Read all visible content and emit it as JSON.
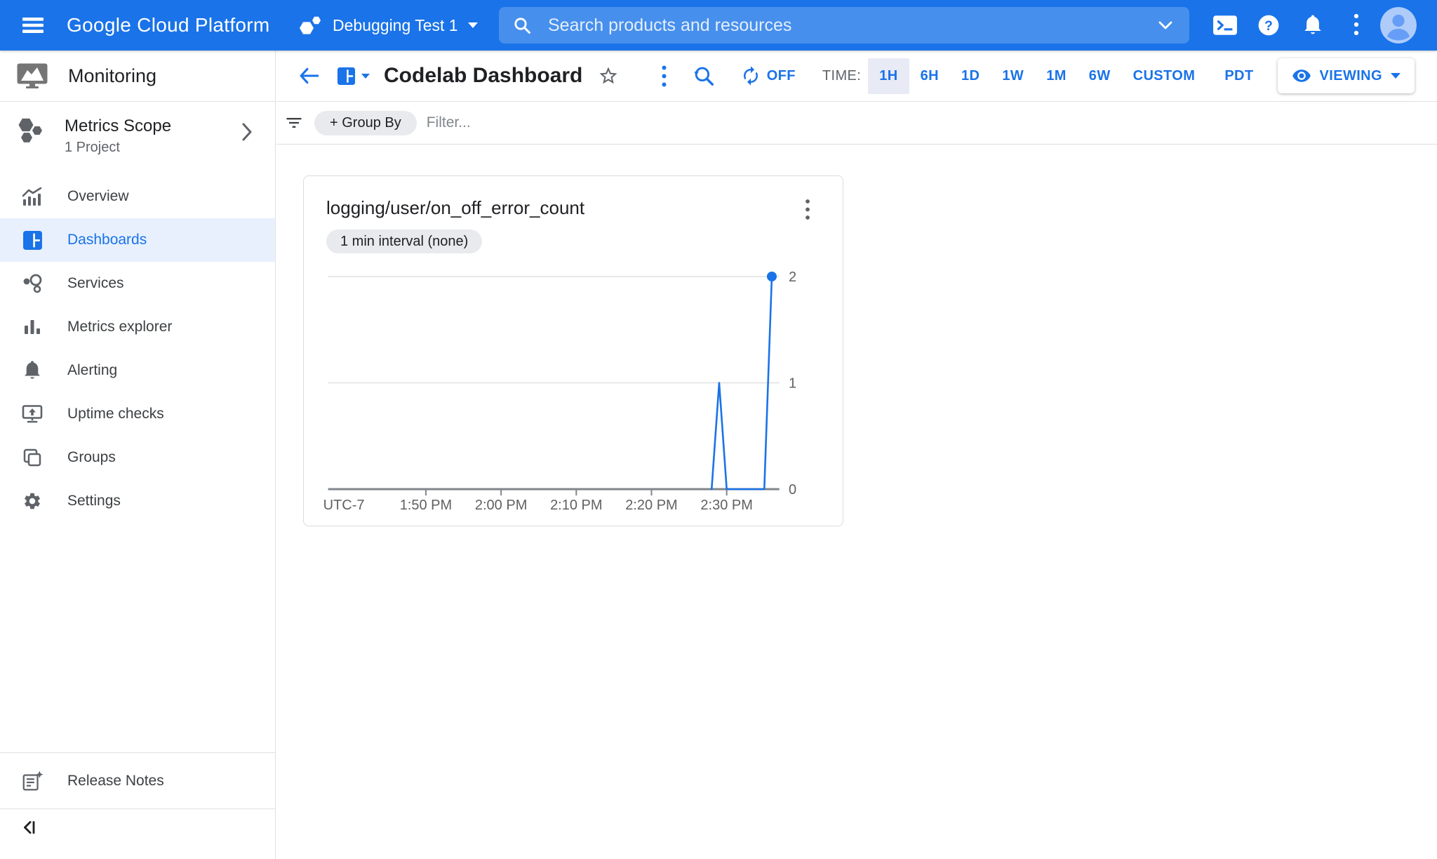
{
  "topbar": {
    "logo": "Google Cloud Platform",
    "project_selector": {
      "label": "Debugging Test 1",
      "icon": "hexagon-cluster-icon"
    },
    "search": {
      "placeholder": "Search products and resources"
    },
    "right_icons": [
      "chevron-down",
      "cloud-shell",
      "help",
      "notifications",
      "more-options",
      "account-avatar"
    ]
  },
  "sidebar": {
    "product": "Monitoring",
    "metrics_scope": {
      "title": "Metrics Scope",
      "subtitle": "1 Project"
    },
    "items": [
      {
        "label": "Overview",
        "selected": false
      },
      {
        "label": "Dashboards",
        "selected": true
      },
      {
        "label": "Services",
        "selected": false
      },
      {
        "label": "Metrics explorer",
        "selected": false
      },
      {
        "label": "Alerting",
        "selected": false
      },
      {
        "label": "Uptime checks",
        "selected": false
      },
      {
        "label": "Groups",
        "selected": false
      },
      {
        "label": "Settings",
        "selected": false
      }
    ],
    "release_notes_label": "Release Notes"
  },
  "toolbar": {
    "title": "Codelab Dashboard",
    "auto_refresh_label": "OFF",
    "time_label": "TIME:",
    "time_ranges": [
      {
        "label": "1H",
        "selected": true
      },
      {
        "label": "6H",
        "selected": false
      },
      {
        "label": "1D",
        "selected": false
      },
      {
        "label": "1W",
        "selected": false
      },
      {
        "label": "1M",
        "selected": false
      },
      {
        "label": "6W",
        "selected": false
      },
      {
        "label": "CUSTOM",
        "selected": false
      }
    ],
    "timezone": "PDT",
    "viewing_label": "VIEWING"
  },
  "filter_bar": {
    "group_by_label": "+ Group By",
    "filter_placeholder": "Filter..."
  },
  "chart_card": {
    "title": "logging/user/on_off_error_count",
    "interval_chip": "1 min interval (none)"
  },
  "chart_data": {
    "type": "line",
    "title": "logging/user/on_off_error_count",
    "x_axis_note": "UTC-7",
    "x_range": [
      "1:37 PM",
      "2:37 PM"
    ],
    "x_ticks": [
      "1:50 PM",
      "2:00 PM",
      "2:10 PM",
      "2:20 PM",
      "2:30 PM"
    ],
    "ylim": [
      0,
      2
    ],
    "y_ticks": [
      0,
      1,
      2
    ],
    "y_axis_side": "right",
    "grid": true,
    "legend": false,
    "series": [
      {
        "name": "logging/user/on_off_error_count",
        "color": "#1a73e8",
        "end_point_marker": true,
        "points": [
          {
            "time": "2:28 PM",
            "value": 0
          },
          {
            "time": "2:29 PM",
            "value": 1
          },
          {
            "time": "2:30 PM",
            "value": 0
          },
          {
            "time": "2:35 PM",
            "value": 0
          },
          {
            "time": "2:36 PM",
            "value": 2
          }
        ]
      }
    ]
  },
  "colors": {
    "topbar_bg": "#1a73e8",
    "accent_blue": "#1a73e8",
    "selected_time_bg": "#e8eaf6",
    "selected_nav_bg": "#e8f0fe",
    "chip_bg": "#e8eaed",
    "text_primary": "#202124",
    "text_secondary": "#5f6368",
    "axis_label": "#616161",
    "axis_line": "#80868b",
    "gridline": "#e0e0e0",
    "series_line": "#1a73e8",
    "avatar_bg": "#aecbfa",
    "avatar_person": "#669df6"
  }
}
